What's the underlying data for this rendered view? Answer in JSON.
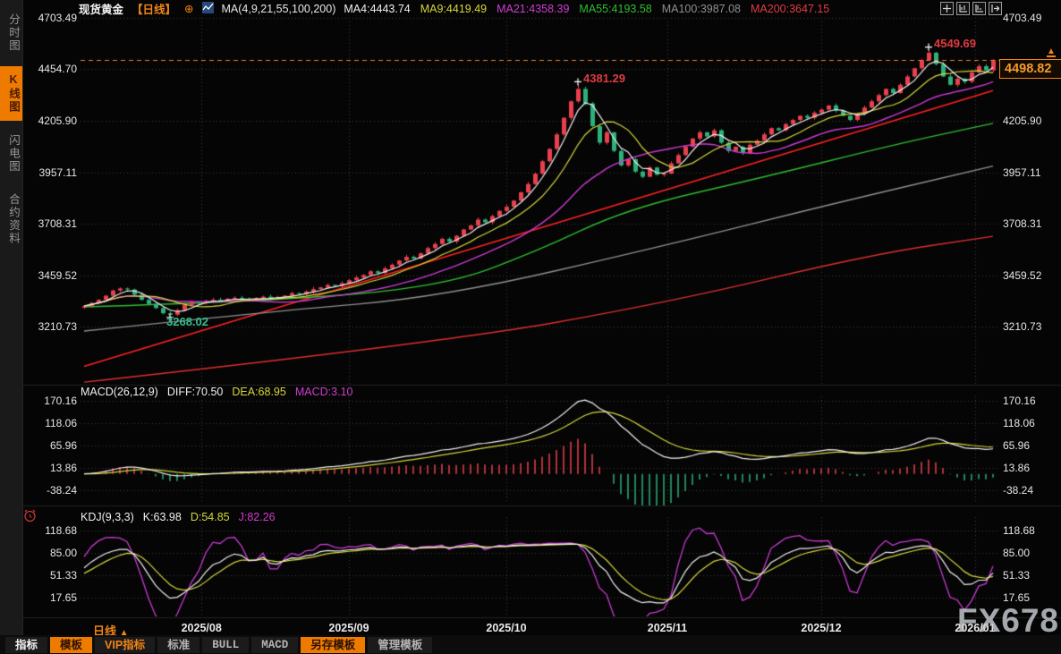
{
  "header": {
    "symbol": "现货黄金",
    "period_tag": "【日线】",
    "ma_settings": "MA(4,9,21,55,100,200)",
    "ma_values": [
      {
        "label": "MA4:4443.74",
        "color": "#f0f0f0"
      },
      {
        "label": "MA9:4419.49",
        "color": "#d6d63c"
      },
      {
        "label": "MA21:4358.39",
        "color": "#d23bd2"
      },
      {
        "label": "MA55:4193.58",
        "color": "#2fbd2f"
      },
      {
        "label": "MA100:3987.08",
        "color": "#8f8f8f"
      },
      {
        "label": "MA200:3647.15",
        "color": "#e23a44"
      }
    ]
  },
  "sidebar": {
    "items": [
      {
        "label": "分时图",
        "active": false
      },
      {
        "label": "K线图",
        "active": true
      },
      {
        "label": "闪电图",
        "active": false
      },
      {
        "label": "合约资料",
        "active": false
      }
    ]
  },
  "axes": {
    "main_left": [
      "4703.49",
      "4454.70",
      "4205.90",
      "3957.11",
      "3708.31",
      "3459.52",
      "3210.73"
    ],
    "main_right": [
      "4703.49",
      "4205.90",
      "3957.11",
      "3708.31",
      "3459.52",
      "3210.73"
    ],
    "macd": [
      "170.16",
      "118.06",
      "65.96",
      "13.86",
      "-38.24"
    ],
    "kdj": [
      "118.68",
      "85.00",
      "51.33",
      "17.65"
    ]
  },
  "macd_panel": {
    "title": "MACD(26,12,9)",
    "diff": "DIFF:70.50",
    "dea": "DEA:68.95",
    "macd": "MACD:3.10"
  },
  "kdj_panel": {
    "title": "KDJ(9,3,3)",
    "k": "K:63.98",
    "d": "D:54.85",
    "j": "J:82.26"
  },
  "annotations": {
    "high_recent": "4549.69",
    "high_october": "4381.29",
    "low_august": "3268.02"
  },
  "price_tag": {
    "value": "4498.82"
  },
  "period_selector": {
    "label": "日线",
    "arrow": "▲"
  },
  "watermark": "FX678",
  "toolbar": {
    "items": [
      {
        "label": "指标",
        "style": "white"
      },
      {
        "label": "模板",
        "style": "orange-bg"
      },
      {
        "label": "VIP指标",
        "style": "orange-text"
      },
      {
        "label": "标准",
        "style": "gray"
      },
      {
        "label": "BULL",
        "style": "mono"
      },
      {
        "label": "MACD",
        "style": "mono"
      },
      {
        "label": "另存模板",
        "style": "orange-bg"
      },
      {
        "label": "管理模板",
        "style": "gray"
      }
    ]
  },
  "chart_data": {
    "type": "candlestick",
    "title": "现货黄金 日线 (Spot Gold, Daily)",
    "current_price": 4498.82,
    "y_axis": {
      "gridline_prices": [
        4703.49,
        4454.7,
        4205.9,
        3957.11,
        3708.31,
        3459.52,
        3210.73
      ]
    },
    "x_axis": {
      "labels": [
        "2025/08",
        "2025/09",
        "2025/10",
        "2025/11",
        "2025/12",
        "2026/01"
      ],
      "label_indices": [
        16.4,
        37,
        59,
        81.5,
        103,
        124.5
      ]
    },
    "closes": [
      3310,
      3325,
      3340,
      3360,
      3385,
      3395,
      3390,
      3365,
      3340,
      3320,
      3300,
      3275,
      3268,
      3290,
      3315,
      3330,
      3325,
      3335,
      3340,
      3332,
      3345,
      3350,
      3342,
      3338,
      3348,
      3355,
      3345,
      3352,
      3360,
      3372,
      3368,
      3380,
      3392,
      3400,
      3412,
      3408,
      3420,
      3435,
      3448,
      3460,
      3478,
      3470,
      3492,
      3510,
      3530,
      3548,
      3540,
      3565,
      3590,
      3610,
      3635,
      3622,
      3650,
      3680,
      3700,
      3728,
      3715,
      3745,
      3770,
      3790,
      3820,
      3860,
      3900,
      3950,
      4010,
      4070,
      4140,
      4220,
      4300,
      4360,
      4290,
      4180,
      4100,
      4150,
      4060,
      3990,
      4020,
      3960,
      3935,
      3980,
      3945,
      3950,
      4000,
      4040,
      4080,
      4120,
      4150,
      4130,
      4160,
      4100,
      4060,
      4080,
      4050,
      4090,
      4110,
      4140,
      4170,
      4160,
      4190,
      4210,
      4230,
      4220,
      4245,
      4260,
      4280,
      4255,
      4230,
      4210,
      4240,
      4270,
      4300,
      4330,
      4360,
      4340,
      4380,
      4420,
      4460,
      4500,
      4535,
      4480,
      4420,
      4380,
      4410,
      4395,
      4440,
      4470,
      4450,
      4498.82
    ],
    "wick_overrides": {
      "12": {
        "low": 3268.02
      },
      "69": {
        "high": 4381.29
      },
      "118": {
        "high": 4549.69
      }
    },
    "marked_points": [
      {
        "index": 118,
        "price": 4549.69,
        "kind": "high"
      },
      {
        "index": 69,
        "price": 4381.29,
        "kind": "high"
      },
      {
        "index": 12,
        "price": 3268.02,
        "kind": "low"
      }
    ],
    "ma_overlays": [
      {
        "name": "MA55",
        "color": "#2fbd2f",
        "points": [
          [
            0,
            3306
          ],
          [
            26,
            3332
          ],
          [
            50,
            3405
          ],
          [
            63,
            3570
          ],
          [
            76,
            3782
          ],
          [
            95,
            3933
          ],
          [
            113,
            4089
          ],
          [
            127,
            4193.58
          ]
        ]
      },
      {
        "name": "MA100",
        "color": "#909090",
        "points": [
          [
            0,
            3189
          ],
          [
            26,
            3284
          ],
          [
            50,
            3353
          ],
          [
            82,
            3609
          ],
          [
            104,
            3800
          ],
          [
            127,
            3987.08
          ]
        ]
      },
      {
        "name": "MA200",
        "color": "#dd2f2f",
        "points": [
          [
            0,
            2942
          ],
          [
            50,
            3133
          ],
          [
            82,
            3330
          ],
          [
            110,
            3560
          ],
          [
            127,
            3647.15
          ]
        ]
      }
    ],
    "trendline": {
      "color": "#ff2222",
      "points": [
        [
          0,
          3018
        ],
        [
          127,
          4352
        ]
      ]
    },
    "macd": {
      "params": [
        26,
        12,
        9
      ],
      "gridlines": [
        170.16,
        118.06,
        65.96,
        13.86,
        -38.24
      ],
      "last": {
        "diff": 70.5,
        "dea": 68.95,
        "macd": 3.1
      }
    },
    "kdj": {
      "params": [
        9,
        3,
        3
      ],
      "gridlines": [
        118.68,
        85.0,
        51.33,
        17.65
      ],
      "last": {
        "k": 63.98,
        "d": 54.85,
        "j": 82.26
      }
    },
    "colors": {
      "up": "#e8404d",
      "down": "#2cb17a",
      "ma4": "#f0f0f0",
      "ma9": "#d6d63c",
      "ma21": "#cc3ad4",
      "grid": "#3c3c3c",
      "price_line": "#f08418"
    }
  }
}
